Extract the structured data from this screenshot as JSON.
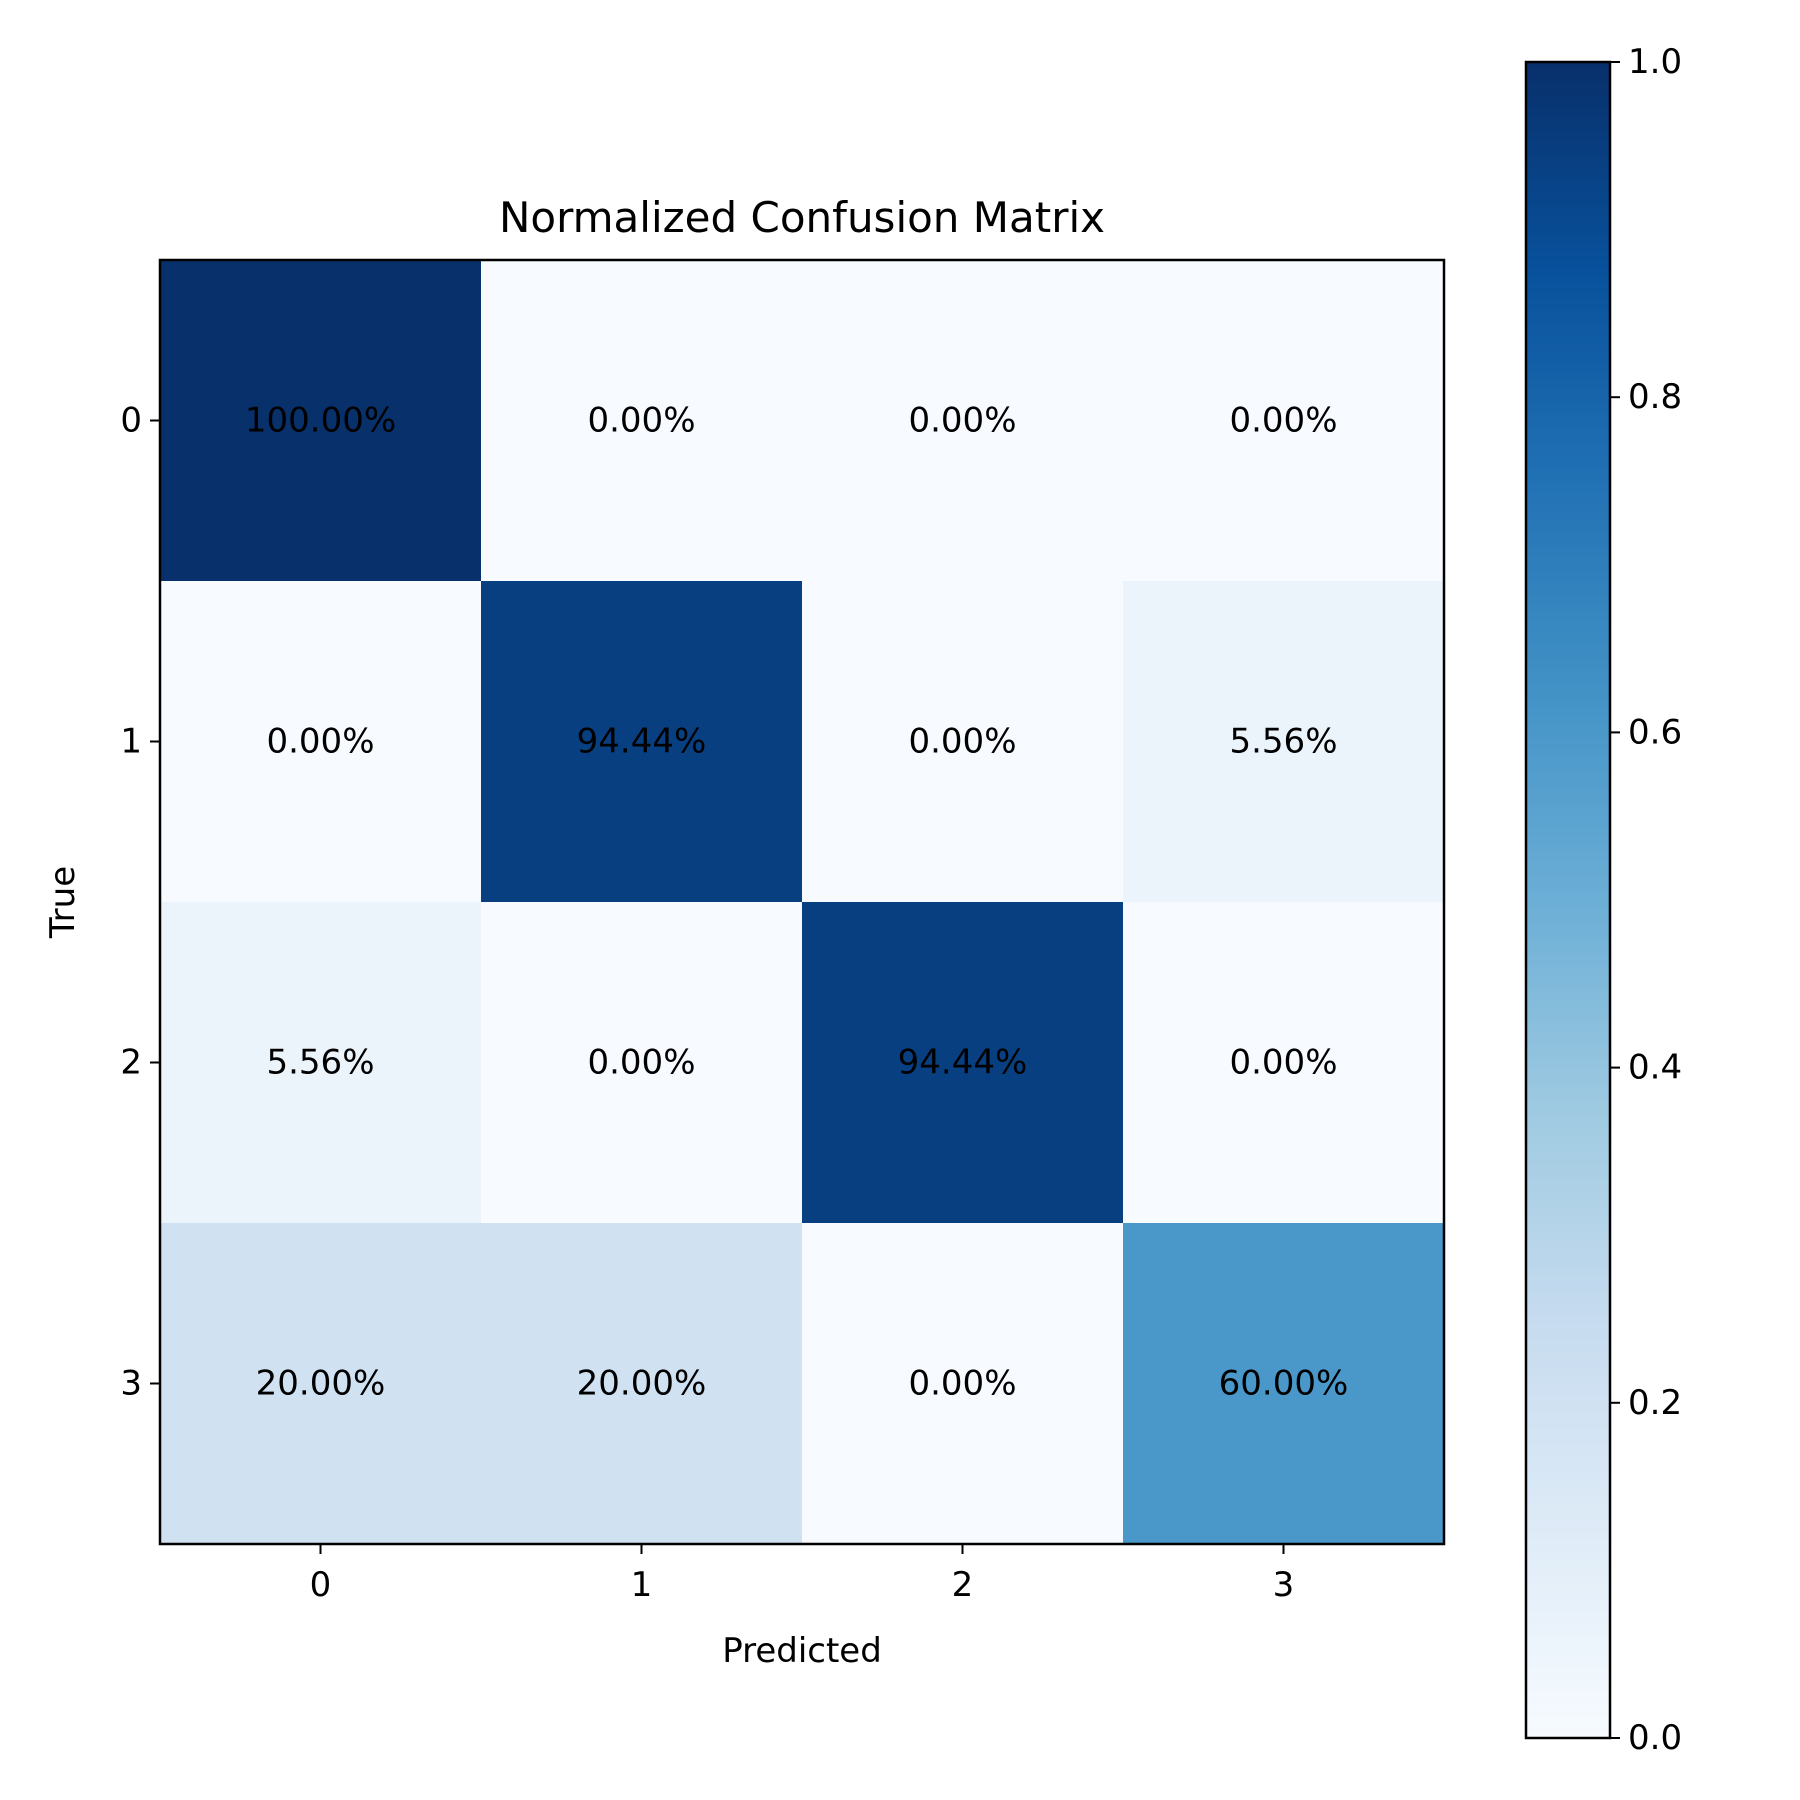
{
  "chart_data": {
    "type": "heatmap",
    "title": "Normalized Confusion Matrix",
    "xlabel": "Predicted",
    "ylabel": "True",
    "x_categories": [
      "0",
      "1",
      "2",
      "3"
    ],
    "y_categories": [
      "0",
      "1",
      "2",
      "3"
    ],
    "values": [
      [
        1.0,
        0.0,
        0.0,
        0.0
      ],
      [
        0.0,
        0.9444,
        0.0,
        0.0556
      ],
      [
        0.0556,
        0.0,
        0.9444,
        0.0
      ],
      [
        0.2,
        0.2,
        0.0,
        0.6
      ]
    ],
    "labels": [
      [
        "100.00%",
        "0.00%",
        "0.00%",
        "0.00%"
      ],
      [
        "0.00%",
        "94.44%",
        "0.00%",
        "5.56%"
      ],
      [
        "5.56%",
        "0.00%",
        "94.44%",
        "0.00%"
      ],
      [
        "20.00%",
        "20.00%",
        "0.00%",
        "60.00%"
      ]
    ],
    "colormap": "Blues",
    "colorbar": {
      "range": [
        0.0,
        1.0
      ],
      "ticks": [
        "0.0",
        "0.2",
        "0.4",
        "0.6",
        "0.8",
        "1.0"
      ]
    }
  }
}
